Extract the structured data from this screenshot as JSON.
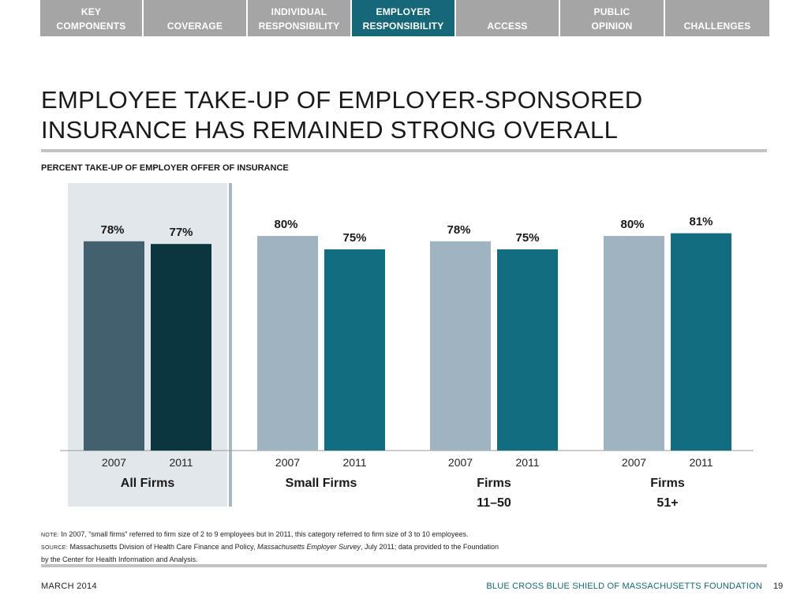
{
  "nav": {
    "tabs": [
      {
        "label": "KEY\nCOMPONENTS",
        "active": false
      },
      {
        "label": "COVERAGE",
        "active": false
      },
      {
        "label": "INDIVIDUAL\nRESPONSIBILITY",
        "active": false
      },
      {
        "label": "EMPLOYER\nRESPONSIBILITY",
        "active": true
      },
      {
        "label": "ACCESS",
        "active": false
      },
      {
        "label": "PUBLIC\nOPINION",
        "active": false
      },
      {
        "label": "CHALLENGES",
        "active": false
      }
    ]
  },
  "title": "EMPLOYEE TAKE-UP OF EMPLOYER-SPONSORED\nINSURANCE HAS REMAINED STRONG OVERALL",
  "chart_data": {
    "type": "bar",
    "title": "PERCENT TAKE-UP OF EMPLOYER OFFER OF INSURANCE",
    "ylim": [
      0,
      100
    ],
    "grid": false,
    "groups": [
      {
        "name": "All Firms",
        "highlighted": true,
        "bars": [
          {
            "x": "2007",
            "value": 78,
            "label": "78%",
            "color": "#43606f"
          },
          {
            "x": "2011",
            "value": 77,
            "label": "77%",
            "color": "#0b3640"
          }
        ]
      },
      {
        "name": "Small Firms",
        "highlighted": false,
        "bars": [
          {
            "x": "2007",
            "value": 80,
            "label": "80%",
            "color": "#9fb4c0"
          },
          {
            "x": "2011",
            "value": 75,
            "label": "75%",
            "color": "#126d81"
          }
        ]
      },
      {
        "name": "Firms\n11–50",
        "highlighted": false,
        "bars": [
          {
            "x": "2007",
            "value": 78,
            "label": "78%",
            "color": "#9fb4c0"
          },
          {
            "x": "2011",
            "value": 75,
            "label": "75%",
            "color": "#126d81"
          }
        ]
      },
      {
        "name": "Firms\n51+",
        "highlighted": false,
        "bars": [
          {
            "x": "2007",
            "value": 80,
            "label": "80%",
            "color": "#9fb4c0"
          },
          {
            "x": "2011",
            "value": 81,
            "label": "81%",
            "color": "#126d81"
          }
        ]
      }
    ],
    "colors": {
      "highlight_panel": "#e1e7ea",
      "divider": "#a6b8c2",
      "axis": "#9a9a9a"
    }
  },
  "notes": {
    "note_tag": "NOTE:",
    "note_text": " In 2007, “small firms” referred to firm size of 2 to 9 employees  but in 2011, this category referred to firm size of 3 to 10 employees.",
    "source_tag": "SOURCE:",
    "source_text_1": " Massachusetts Division of Health Care Finance and Policy, ",
    "source_italic": "Massachusetts Employer Survey",
    "source_text_2": ", July 2011; data provided to the Foundation",
    "source_text_3": "by the Center for Health Information and Analysis."
  },
  "footer": {
    "date": "MARCH 2014",
    "org": "BLUE CROSS BLUE SHIELD OF MASSACHUSETTS FOUNDATION",
    "page": "19"
  }
}
